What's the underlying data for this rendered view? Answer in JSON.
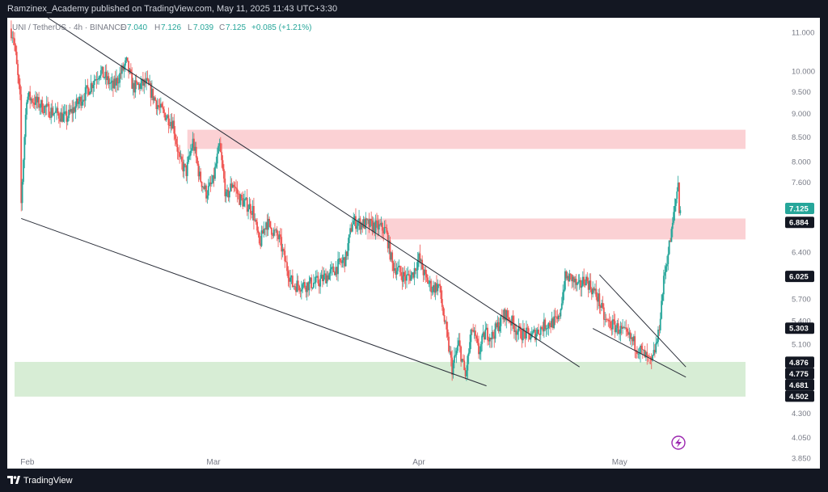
{
  "header": {
    "publish_line": "Ramzinex_Academy published on TradingView.com, May 11, 2025 11:43 UTC+3:30"
  },
  "legend": {
    "symbol": "UNI / TetherUS · 4h · BINANCE",
    "open_label": "O",
    "open": "7.040",
    "high_label": "H",
    "high": "7.126",
    "low_label": "L",
    "low": "7.039",
    "close_label": "C",
    "close": "7.125",
    "change": "+0.085 (+1.21%)"
  },
  "footer": {
    "brand": "TradingView",
    "logo_icon": "tradingview-logo-icon"
  },
  "colors": {
    "up": "#26a69a",
    "down": "#ef5350",
    "background": "#ffffff",
    "frame": "#131722",
    "resistance_zone": "#fbcfd2",
    "support_zone": "#d5ecd3",
    "trendline": "#2a2e39"
  },
  "chart_data": {
    "type": "candlestick",
    "symbol": "UNI/USDT",
    "interval": "4h",
    "y_scale": "log",
    "ylim": [
      3.85,
      11.4
    ],
    "x_tick_labels": [
      "Feb",
      "Mar",
      "Apr",
      "May"
    ],
    "y_tick_labels": [
      "11.000",
      "10.000",
      "9.500",
      "9.000",
      "8.500",
      "8.000",
      "7.600",
      "6.400",
      "5.700",
      "5.400",
      "5.100",
      "4.300",
      "4.050",
      "3.850"
    ],
    "price_markers": [
      {
        "value": "7.125",
        "style": "up"
      },
      {
        "value": "6.884",
        "style": "dark"
      },
      {
        "value": "6.025",
        "style": "dark"
      },
      {
        "value": "5.303",
        "style": "dark"
      },
      {
        "value": "4.876",
        "style": "dark"
      },
      {
        "value": "4.775",
        "style": "dark"
      },
      {
        "value": "4.681",
        "style": "dark"
      },
      {
        "value": "4.502",
        "style": "dark"
      }
    ],
    "zones": [
      {
        "kind": "resistance",
        "from_date": "2025-02-26",
        "to_date": "2025-05-25",
        "low": 8.25,
        "high": 8.65
      },
      {
        "kind": "resistance",
        "from_date": "2025-03-25",
        "to_date": "2025-05-25",
        "low": 6.6,
        "high": 6.95
      },
      {
        "kind": "support",
        "from_date": "2025-01-31",
        "to_date": "2025-05-21",
        "low": 4.48,
        "high": 4.88
      }
    ],
    "trendlines": [
      {
        "from": [
          "2025-02-05",
          11.4
        ],
        "to": [
          "2025-04-26",
          4.82
        ]
      },
      {
        "from": [
          "2025-02-01",
          6.95
        ],
        "to": [
          "2025-04-12",
          4.6
        ]
      },
      {
        "from": [
          "2025-04-29",
          6.05
        ],
        "to": [
          "2025-05-12",
          4.82
        ]
      },
      {
        "from": [
          "2025-04-28",
          5.3
        ],
        "to": [
          "2025-05-12",
          4.7
        ]
      }
    ],
    "price_path": [
      [
        "2025-01-30",
        11.3
      ],
      [
        "2025-01-31",
        10.9
      ],
      [
        "2025-02-01",
        9.3
      ],
      [
        "2025-02-01",
        7.2
      ],
      [
        "2025-02-02",
        9.4
      ],
      [
        "2025-02-05",
        9.1
      ],
      [
        "2025-02-08",
        8.9
      ],
      [
        "2025-02-11",
        9.5
      ],
      [
        "2025-02-13",
        10.0
      ],
      [
        "2025-02-15",
        9.6
      ],
      [
        "2025-02-17",
        10.2
      ],
      [
        "2025-02-18",
        9.6
      ],
      [
        "2025-02-20",
        9.7
      ],
      [
        "2025-02-22",
        9.1
      ],
      [
        "2025-02-24",
        8.8
      ],
      [
        "2025-02-25",
        8.0
      ],
      [
        "2025-02-26",
        7.8
      ],
      [
        "2025-02-27",
        8.4
      ],
      [
        "2025-02-28",
        7.7
      ],
      [
        "2025-03-01",
        7.4
      ],
      [
        "2025-03-02",
        7.6
      ],
      [
        "2025-03-03",
        8.3
      ],
      [
        "2025-03-04",
        7.3
      ],
      [
        "2025-03-05",
        7.6
      ],
      [
        "2025-03-06",
        7.3
      ],
      [
        "2025-03-08",
        7.1
      ],
      [
        "2025-03-09",
        6.5
      ],
      [
        "2025-03-10",
        6.9
      ],
      [
        "2025-03-12",
        6.6
      ],
      [
        "2025-03-13",
        6.2
      ],
      [
        "2025-03-14",
        5.9
      ],
      [
        "2025-03-16",
        5.9
      ],
      [
        "2025-03-18",
        5.95
      ],
      [
        "2025-03-20",
        6.1
      ],
      [
        "2025-03-22",
        6.3
      ],
      [
        "2025-03-23",
        6.9
      ],
      [
        "2025-03-25",
        6.85
      ],
      [
        "2025-03-27",
        6.8
      ],
      [
        "2025-03-28",
        6.75
      ],
      [
        "2025-03-29",
        6.2
      ],
      [
        "2025-03-31",
        6.0
      ],
      [
        "2025-04-01",
        6.05
      ],
      [
        "2025-04-02",
        6.3
      ],
      [
        "2025-04-03",
        6.0
      ],
      [
        "2025-04-04",
        5.85
      ],
      [
        "2025-04-05",
        5.9
      ],
      [
        "2025-04-06",
        5.3
      ],
      [
        "2025-04-07",
        4.8
      ],
      [
        "2025-04-08",
        5.1
      ],
      [
        "2025-04-09",
        4.7
      ],
      [
        "2025-04-10",
        5.3
      ],
      [
        "2025-04-11",
        5.0
      ],
      [
        "2025-04-12",
        5.25
      ],
      [
        "2025-04-13",
        5.2
      ],
      [
        "2025-04-15",
        5.5
      ],
      [
        "2025-04-17",
        5.25
      ],
      [
        "2025-04-19",
        5.2
      ],
      [
        "2025-04-21",
        5.35
      ],
      [
        "2025-04-23",
        5.4
      ],
      [
        "2025-04-24",
        6.0
      ],
      [
        "2025-04-25",
        6.0
      ],
      [
        "2025-04-26",
        5.85
      ],
      [
        "2025-04-27",
        6.0
      ],
      [
        "2025-04-29",
        5.7
      ],
      [
        "2025-04-30",
        5.4
      ],
      [
        "2025-05-02",
        5.3
      ],
      [
        "2025-05-04",
        5.15
      ],
      [
        "2025-05-06",
        4.95
      ],
      [
        "2025-05-07",
        4.85
      ],
      [
        "2025-05-08",
        5.2
      ],
      [
        "2025-05-09",
        6.1
      ],
      [
        "2025-05-10",
        6.7
      ],
      [
        "2025-05-11",
        7.6
      ],
      [
        "2025-05-11",
        7.125
      ]
    ]
  }
}
